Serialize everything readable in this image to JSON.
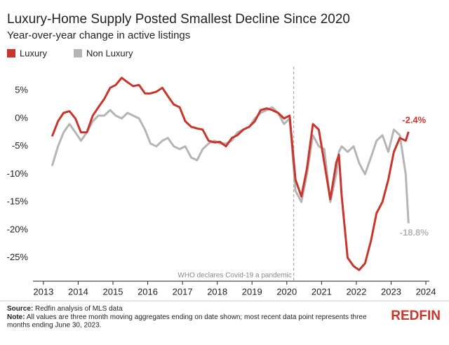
{
  "chart_data": {
    "type": "line",
    "title": "Luxury-Home Supply Posted Smallest Decline Since 2020",
    "subtitle": "Year-over-year change in active listings",
    "x": [
      2013.25,
      2013.42,
      2013.58,
      2013.75,
      2013.92,
      2014.08,
      2014.25,
      2014.42,
      2014.58,
      2014.75,
      2014.92,
      2015.08,
      2015.25,
      2015.42,
      2015.58,
      2015.75,
      2015.92,
      2016.08,
      2016.25,
      2016.42,
      2016.58,
      2016.75,
      2016.92,
      2017.08,
      2017.25,
      2017.42,
      2017.58,
      2017.75,
      2017.92,
      2018.08,
      2018.25,
      2018.42,
      2018.58,
      2018.75,
      2018.92,
      2019.08,
      2019.25,
      2019.42,
      2019.58,
      2019.75,
      2019.92,
      2020.08,
      2020.25,
      2020.42,
      2020.58,
      2020.75,
      2020.92,
      2021.08,
      2021.25,
      2021.42,
      2021.5,
      2021.58,
      2021.75,
      2021.92,
      2022.08,
      2022.25,
      2022.42,
      2022.58,
      2022.75,
      2022.92,
      2023.08,
      2023.25,
      2023.42,
      2023.5
    ],
    "series": [
      {
        "name": "Luxury",
        "color": "#c8352b",
        "end_label": "-2.4%",
        "values": [
          -3.2,
          -0.5,
          1.0,
          1.3,
          0,
          -2.5,
          -2.5,
          0.5,
          2.0,
          3.5,
          5.5,
          6,
          7.3,
          6.5,
          5.8,
          6,
          4.5,
          4.5,
          4.8,
          5.5,
          4.0,
          2.5,
          2,
          -0.5,
          -1.5,
          -1.8,
          -2,
          -4,
          -4.3,
          -4.2,
          -5,
          -3.5,
          -3,
          -2,
          -1.5,
          -0.5,
          1.5,
          1.8,
          1.5,
          1.0,
          0,
          0.5,
          -11,
          -14,
          -9,
          -1,
          -2,
          -8,
          -14.5,
          -8,
          -6.5,
          -14,
          -25,
          -26.5,
          -27.2,
          -26,
          -22,
          -17,
          -15,
          -11,
          -6,
          -3.5,
          -4,
          -2.4
        ]
      },
      {
        "name": "Non Luxury",
        "color": "#b5b5b5",
        "end_label": "-18.8%",
        "values": [
          -8.5,
          -5,
          -2.5,
          -1,
          -2.5,
          -4,
          -2.5,
          -0.5,
          0.5,
          0.5,
          1.5,
          0.5,
          0,
          1,
          0.5,
          0,
          -2,
          -4.5,
          -5,
          -4,
          -3.5,
          -5,
          -5.5,
          -5,
          -7,
          -7.5,
          -5.5,
          -4.5,
          -4,
          -4.5,
          -4.5,
          -4,
          -2.5,
          -2,
          -1.5,
          0,
          1,
          1.5,
          2,
          1,
          -1,
          0,
          -13,
          -15,
          -10,
          -3,
          -5,
          -5.5,
          -15,
          -10,
          -6,
          -5,
          -6,
          -5,
          -8,
          -10,
          -7,
          -4,
          -3,
          -6,
          -2,
          -3,
          -10,
          -18.8
        ]
      }
    ],
    "xlim": [
      2012.7,
      2024.1
    ],
    "xticks": [
      2013,
      2014,
      2015,
      2016,
      2017,
      2018,
      2019,
      2020,
      2021,
      2022,
      2023,
      2024
    ],
    "ylim": [
      -29.2,
      9.3
    ],
    "yticks": [
      {
        "value": 5,
        "label": "5%"
      },
      {
        "value": 0,
        "label": "0%"
      },
      {
        "value": -5,
        "label": "-5%"
      },
      {
        "value": -10,
        "label": "-10%"
      },
      {
        "value": -15,
        "label": "-15%"
      },
      {
        "value": -20,
        "label": "-20%"
      },
      {
        "value": -25,
        "label": "-25%"
      }
    ],
    "grid": false,
    "legend": "top-left",
    "annotations": [
      {
        "x": 2020.2,
        "text": "WHO declares Covid-19 a pandemic"
      }
    ]
  },
  "footer": {
    "source_label": "Source:",
    "source": "Redfin analysis of MLS data",
    "note_label": "Note:",
    "note_line1": "All values are three month moving aggregates ending on date shown; most recent data point represents three",
    "note_line2": "months ending June 30, 2023.",
    "brand": "REDFIN"
  }
}
